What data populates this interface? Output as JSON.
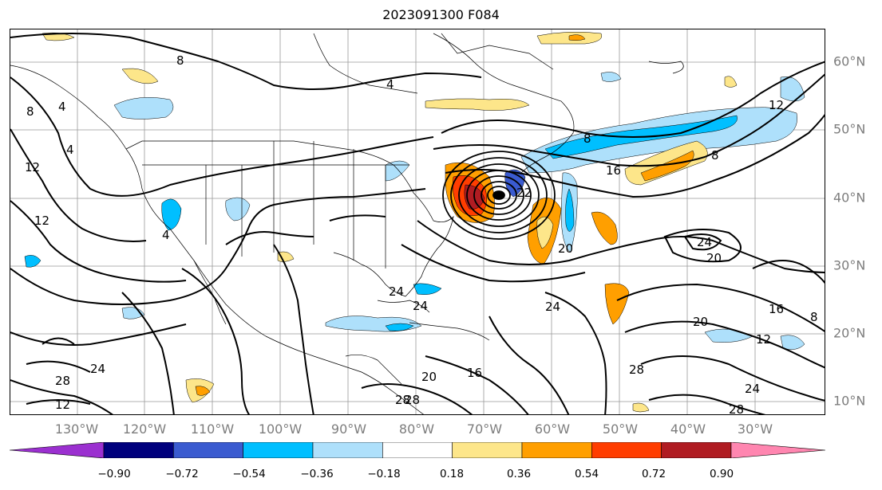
{
  "title": "2023091300 F084",
  "lon_labels": [
    "130°W",
    "120°W",
    "110°W",
    "100°W",
    "90°W",
    "80°W",
    "70°W",
    "60°W",
    "50°W",
    "40°W",
    "30°W"
  ],
  "lat_labels": [
    "60°N",
    "50°N",
    "40°N",
    "30°N",
    "20°N",
    "10°N"
  ],
  "colorbar": {
    "ticks": [
      "−0.90",
      "−0.72",
      "−0.54",
      "−0.36",
      "−0.18",
      "0.18",
      "0.36",
      "0.54",
      "0.72",
      "0.90"
    ],
    "colors": [
      "#9b30d0",
      "#00007d",
      "#3a5bd0",
      "#00bfff",
      "#aee0fb",
      "#ffffff",
      "#fde68a",
      "#ff9f00",
      "#ff3d00",
      "#b01c22",
      "#ff86b0"
    ]
  },
  "contour_labels": [
    "8",
    "4",
    "4",
    "12",
    "12",
    "8",
    "4",
    "12",
    "8",
    "16",
    "8",
    "24",
    "4",
    "20",
    "24",
    "20",
    "16",
    "12",
    "8",
    "24",
    "20",
    "24",
    "28",
    "28",
    "24",
    "20",
    "16",
    "28",
    "12",
    "28",
    "24",
    "28",
    "22"
  ]
}
